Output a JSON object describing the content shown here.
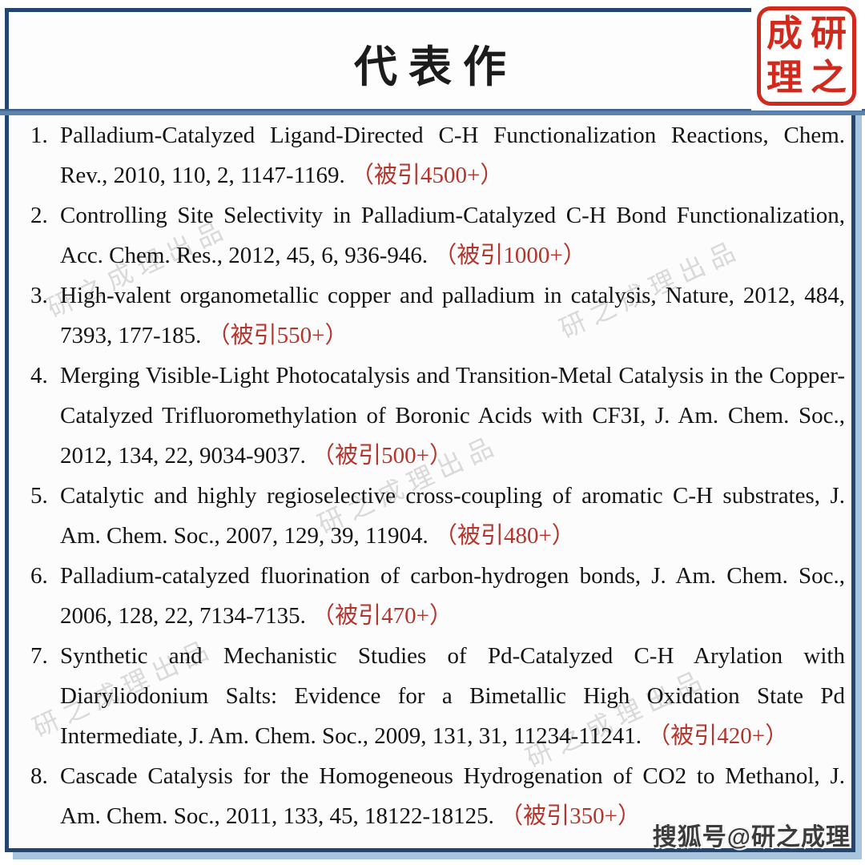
{
  "header": {
    "title": "代表作"
  },
  "seal": {
    "name": "研之成理",
    "grid_chars": [
      "成",
      "研",
      "理",
      "之"
    ]
  },
  "publications": [
    {
      "num": "1.",
      "text": "Palladium-Catalyzed Ligand-Directed C-H Functionalization Reactions, Chem. Rev., 2010, 110, 2, 1147-1169.",
      "citation": "（被引4500+）"
    },
    {
      "num": "2.",
      "text": "Controlling Site Selectivity in Palladium-Catalyzed C-H Bond Functionalization, Acc. Chem. Res., 2012, 45, 6, 936-946.",
      "citation": "（被引1000+）"
    },
    {
      "num": "3.",
      "text": "High-valent organometallic copper and palladium in catalysis, Nature, 2012, 484, 7393, 177-185.",
      "citation": "（被引550+）"
    },
    {
      "num": "4.",
      "text": "Merging Visible-Light Photocatalysis and Transition-Metal Catalysis in the Copper-Catalyzed Trifluoromethylation of Boronic Acids with CF3I, J. Am. Chem. Soc., 2012, 134, 22, 9034-9037.",
      "citation": "（被引500+）"
    },
    {
      "num": "5.",
      "text": "Catalytic and highly regioselective cross-coupling of aromatic C-H substrates, J. Am. Chem. Soc., 2007, 129, 39, 11904.",
      "citation": "（被引480+）"
    },
    {
      "num": "6.",
      "text": "Palladium-catalyzed fluorination of carbon-hydrogen bonds, J. Am. Chem. Soc., 2006, 128, 22, 7134-7135.",
      "citation": "（被引470+）"
    },
    {
      "num": "7.",
      "text": "Synthetic and Mechanistic Studies of Pd-Catalyzed C-H Arylation with Diaryliodonium Salts: Evidence for a Bimetallic High Oxidation State Pd Intermediate, J. Am. Chem. Soc., 2009, 131, 31, 11234-11241.",
      "citation": "（被引420+）"
    },
    {
      "num": "8.",
      "text": "Cascade Catalysis for the Homogeneous Hydrogenation of CO2 to Methanol, J. Am. Chem. Soc., 2011, 133, 45, 18122-18125.",
      "citation": "（被引350+）"
    }
  ],
  "watermarks": {
    "diagonal_text": "研之成理出品",
    "bottom_right_text": "搜狐号@研之成理"
  },
  "colors": {
    "frame": "#24466e",
    "divider-dark": "#3a6190",
    "divider-light": "#5e84ae",
    "shadow-band": "#a9c4de",
    "citation-red": "#b5342c",
    "seal-red": "#d12a1d",
    "text-ink": "#141414"
  }
}
